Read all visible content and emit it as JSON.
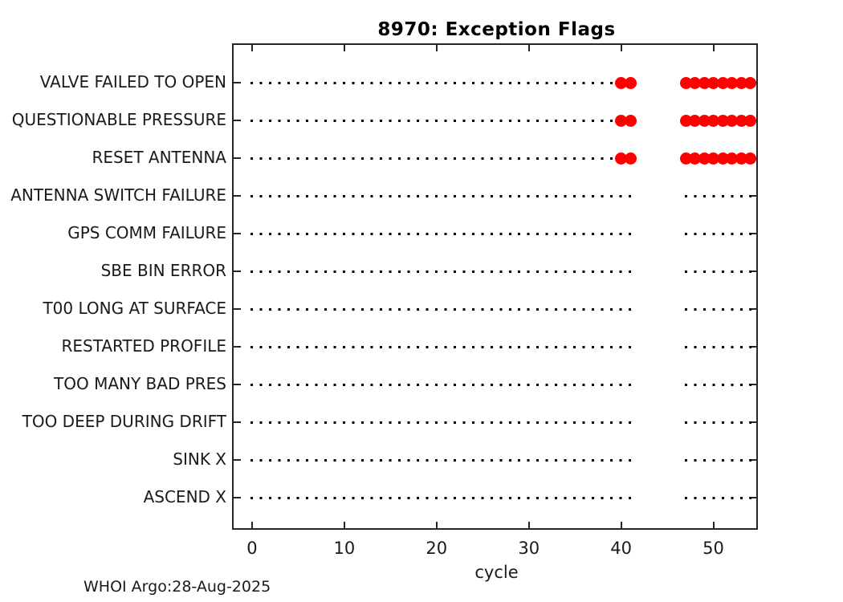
{
  "chart_data": {
    "type": "scatter",
    "title": "8970: Exception Flags",
    "xlabel": "cycle",
    "xlim": [
      -2,
      55
    ],
    "x_ticks": [
      0,
      10,
      20,
      30,
      40,
      50
    ],
    "categories": [
      "VALVE FAILED TO OPEN",
      "QUESTIONABLE PRESSURE",
      "RESET ANTENNA",
      "ANTENNA SWITCH FAILURE",
      "GPS COMM FAILURE",
      "SBE BIN ERROR",
      "T00 LONG AT SURFACE",
      "RESTARTED PROFILE",
      "TOO MANY BAD PRES",
      "TOO DEEP DURING DRIFT",
      "SINK X",
      "ASCEND X"
    ],
    "cycle_segments": [
      [
        0,
        41
      ],
      [
        47,
        54
      ]
    ],
    "flags": [
      {
        "category": "VALVE FAILED TO OPEN",
        "cycles": [
          40,
          41,
          47,
          48,
          49,
          50,
          51,
          52,
          53,
          54
        ]
      },
      {
        "category": "QUESTIONABLE PRESSURE",
        "cycles": [
          40,
          41,
          47,
          48,
          49,
          50,
          51,
          52,
          53,
          54
        ]
      },
      {
        "category": "RESET ANTENNA",
        "cycles": [
          40,
          41,
          47,
          48,
          49,
          50,
          51,
          52,
          53,
          54
        ]
      }
    ],
    "legend": "none",
    "grid": "off",
    "colors": {
      "flag": "#ff0000",
      "dot": "#000000",
      "axis": "#262626"
    }
  },
  "footer": {
    "credit": "WHOI Argo:28-Aug-2025"
  }
}
